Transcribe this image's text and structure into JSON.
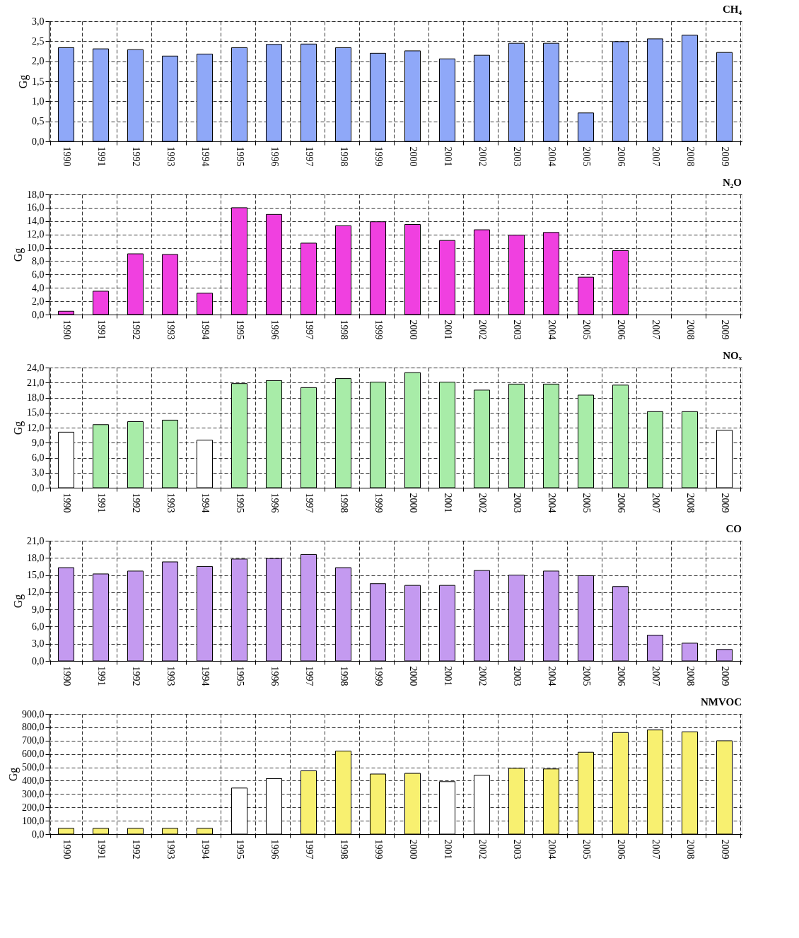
{
  "chart_data": [
    {
      "type": "bar",
      "title": "CH₄",
      "ylabel": "Gg",
      "categories": [
        "1990",
        "1991",
        "1992",
        "1993",
        "1994",
        "1995",
        "1996",
        "1997",
        "1998",
        "1999",
        "2000",
        "2001",
        "2002",
        "2003",
        "2004",
        "2005",
        "2006",
        "2007",
        "2008",
        "2009"
      ],
      "values": [
        2.34,
        2.31,
        2.29,
        2.13,
        2.18,
        2.34,
        2.42,
        2.43,
        2.34,
        2.2,
        2.26,
        2.06,
        2.15,
        2.45,
        2.45,
        0.71,
        2.49,
        2.56,
        2.65,
        2.22
      ],
      "color": "#8fa8f8",
      "ylim": [
        0,
        3
      ],
      "yticks": [
        {
          "value": 0,
          "label": "0,0"
        },
        {
          "value": 0.5,
          "label": "0,5"
        },
        {
          "value": 1,
          "label": "1,0"
        },
        {
          "value": 1.5,
          "label": "1,5"
        },
        {
          "value": 2,
          "label": "2,0"
        },
        {
          "value": 2.5,
          "label": "2,5"
        },
        {
          "value": 3,
          "label": "3,0"
        }
      ],
      "grid": true
    },
    {
      "type": "bar",
      "title": "N₂O",
      "ylabel": "Gg",
      "categories": [
        "1990",
        "1991",
        "1992",
        "1993",
        "1994",
        "1995",
        "1996",
        "1997",
        "1998",
        "1999",
        "2000",
        "2001",
        "2002",
        "2003",
        "2004",
        "2005",
        "2006",
        "2007",
        "2008",
        "2009"
      ],
      "values": [
        0.5,
        3.5,
        9.1,
        9.0,
        3.2,
        16.0,
        15.0,
        10.7,
        13.3,
        13.9,
        13.5,
        11.1,
        12.7,
        11.9,
        12.3,
        5.6,
        9.6,
        null,
        null,
        null
      ],
      "color": "#f040e0",
      "ylim": [
        0,
        18
      ],
      "yticks": [
        {
          "value": 0,
          "label": "0,0"
        },
        {
          "value": 2,
          "label": "2,0"
        },
        {
          "value": 4,
          "label": "4,0"
        },
        {
          "value": 6,
          "label": "6,0"
        },
        {
          "value": 8,
          "label": "8,0"
        },
        {
          "value": 10,
          "label": "10,0"
        },
        {
          "value": 12,
          "label": "12,0"
        },
        {
          "value": 14,
          "label": "14,0"
        },
        {
          "value": 16,
          "label": "16,0"
        },
        {
          "value": 18,
          "label": "18,0"
        }
      ],
      "grid": true
    },
    {
      "type": "bar",
      "title": "NOₓ",
      "ylabel": "Gg",
      "categories": [
        "1990",
        "1991",
        "1992",
        "1993",
        "1994",
        "1995",
        "1996",
        "1997",
        "1998",
        "1999",
        "2000",
        "2001",
        "2002",
        "2003",
        "2004",
        "2005",
        "2006",
        "2007",
        "2008",
        "2009"
      ],
      "values": [
        11.1,
        12.6,
        13.2,
        13.5,
        9.5,
        20.8,
        21.4,
        20.0,
        21.8,
        21.1,
        23.0,
        21.1,
        19.5,
        20.7,
        20.7,
        18.5,
        20.5,
        15.2,
        15.2,
        11.5
      ],
      "colors": [
        "#ffffff",
        "#a8eca8",
        "#a8eca8",
        "#a8eca8",
        "#ffffff",
        "#a8eca8",
        "#a8eca8",
        "#a8eca8",
        "#a8eca8",
        "#a8eca8",
        "#a8eca8",
        "#a8eca8",
        "#a8eca8",
        "#a8eca8",
        "#a8eca8",
        "#a8eca8",
        "#a8eca8",
        "#a8eca8",
        "#a8eca8",
        "#ffffff"
      ],
      "ylim": [
        0,
        24
      ],
      "yticks": [
        {
          "value": 0,
          "label": "0,0"
        },
        {
          "value": 3,
          "label": "3,0"
        },
        {
          "value": 6,
          "label": "6,0"
        },
        {
          "value": 9,
          "label": "9,0"
        },
        {
          "value": 12,
          "label": "12,0"
        },
        {
          "value": 15,
          "label": "15,0"
        },
        {
          "value": 18,
          "label": "18,0"
        },
        {
          "value": 21,
          "label": "21,0"
        },
        {
          "value": 24,
          "label": "24,0"
        }
      ],
      "grid": true
    },
    {
      "type": "bar",
      "title": "CO",
      "ylabel": "Gg",
      "categories": [
        "1990",
        "1991",
        "1992",
        "1993",
        "1994",
        "1995",
        "1996",
        "1997",
        "1998",
        "1999",
        "2000",
        "2001",
        "2002",
        "2003",
        "2004",
        "2005",
        "2006",
        "2007",
        "2008",
        "2009"
      ],
      "values": [
        16.3,
        15.2,
        15.7,
        17.3,
        16.5,
        17.8,
        17.9,
        18.6,
        16.3,
        13.5,
        13.2,
        13.2,
        15.8,
        15.0,
        15.7,
        14.9,
        13.0,
        4.5,
        3.1,
        2.0
      ],
      "color": "#c49af0",
      "ylim": [
        0,
        21
      ],
      "yticks": [
        {
          "value": 0,
          "label": "0,0"
        },
        {
          "value": 3,
          "label": "3,0"
        },
        {
          "value": 6,
          "label": "6,0"
        },
        {
          "value": 9,
          "label": "9,0"
        },
        {
          "value": 12,
          "label": "12,0"
        },
        {
          "value": 15,
          "label": "15,0"
        },
        {
          "value": 18,
          "label": "18,0"
        },
        {
          "value": 21,
          "label": "21,0"
        }
      ],
      "grid": true
    },
    {
      "type": "bar",
      "title": "NMVOC",
      "ylabel": "Gg",
      "categories": [
        "1990",
        "1991",
        "1992",
        "1993",
        "1994",
        "1995",
        "1996",
        "1997",
        "1998",
        "1999",
        "2000",
        "2001",
        "2002",
        "2003",
        "2004",
        "2005",
        "2006",
        "2007",
        "2008",
        "2009"
      ],
      "values": [
        43,
        43,
        43,
        43,
        43,
        345,
        416,
        474,
        622,
        450,
        455,
        393,
        440,
        493,
        488,
        613,
        761,
        780,
        766,
        699
      ],
      "colors": [
        "#f8f070",
        "#f8f070",
        "#f8f070",
        "#f8f070",
        "#f8f070",
        "#ffffff",
        "#ffffff",
        "#f8f070",
        "#f8f070",
        "#f8f070",
        "#f8f070",
        "#ffffff",
        "#ffffff",
        "#f8f070",
        "#f8f070",
        "#f8f070",
        "#f8f070",
        "#f8f070",
        "#f8f070",
        "#f8f070"
      ],
      "ylim": [
        0,
        900
      ],
      "yticks": [
        {
          "value": 0,
          "label": "0,0"
        },
        {
          "value": 100,
          "label": "100,0"
        },
        {
          "value": 200,
          "label": "200,0"
        },
        {
          "value": 300,
          "label": "300,0"
        },
        {
          "value": 400,
          "label": "400,0"
        },
        {
          "value": 500,
          "label": "500,0"
        },
        {
          "value": 600,
          "label": "600,0"
        },
        {
          "value": 700,
          "label": "700,0"
        },
        {
          "value": 800,
          "label": "800,0"
        },
        {
          "value": 900,
          "label": "900,0"
        }
      ],
      "grid": true
    }
  ]
}
